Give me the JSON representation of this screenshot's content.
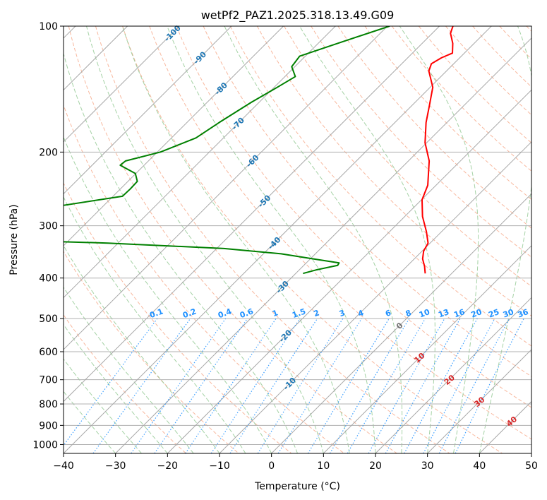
{
  "chart_data": {
    "type": "line",
    "diagram": "skew-t log-p",
    "title": "wetPf2_PAZ1.2025.318.13.49.G09",
    "xlabel": "Temperature (°C)",
    "ylabel": "Pressure (hPa)",
    "xlim": [
      -40,
      50
    ],
    "ylim": [
      1050,
      100
    ],
    "y_scale": "log",
    "x_ticks": [
      -40,
      -30,
      -20,
      -10,
      0,
      10,
      20,
      30,
      40,
      50
    ],
    "y_ticks": [
      100,
      200,
      300,
      400,
      500,
      600,
      700,
      800,
      900,
      1000
    ],
    "grid": true,
    "isotherm_labels": [
      -100,
      -90,
      -80,
      -70,
      -60,
      -50,
      -40,
      -30,
      -20,
      -10,
      0
    ],
    "mixing_ratio_labels": [
      "0.1",
      "0.2",
      "0.4",
      "0.6",
      "1",
      "1.5",
      "2",
      "3",
      "4",
      "6",
      "8",
      "10",
      "13",
      "16",
      "20",
      "25",
      "30",
      "36"
    ],
    "mixing_ratio_values": [
      0.1,
      0.2,
      0.4,
      0.6,
      1,
      1.5,
      2,
      3,
      4,
      6,
      8,
      10,
      13,
      16,
      20,
      25,
      30,
      36
    ],
    "adiabat_labels": [
      "10",
      "20",
      "30",
      "40"
    ],
    "adiabat_values": [
      10,
      20,
      30,
      40
    ],
    "zero_label": "0",
    "series": [
      {
        "color": "#ff0000",
        "points": [
          [
            100,
            -47.4
          ],
          [
            104,
            -46.5
          ],
          [
            110,
            -44.1
          ],
          [
            116,
            -42.3
          ],
          [
            119,
            -43.5
          ],
          [
            123,
            -44.3
          ],
          [
            128,
            -43.4
          ],
          [
            140,
            -39.5
          ],
          [
            155,
            -36.6
          ],
          [
            170,
            -34.0
          ],
          [
            190,
            -30.3
          ],
          [
            210,
            -26.0
          ],
          [
            240,
            -21.6
          ],
          [
            260,
            -19.9
          ],
          [
            285,
            -16.6
          ],
          [
            310,
            -12.9
          ],
          [
            330,
            -10.4
          ],
          [
            345,
            -9.7
          ],
          [
            360,
            -8.4
          ],
          [
            375,
            -6.6
          ],
          [
            390,
            -5.1
          ]
        ]
      },
      {
        "color": "#008000",
        "points": [
          [
            100,
            -59.6
          ],
          [
            110,
            -66.3
          ],
          [
            118,
            -71.1
          ],
          [
            125,
            -70.6
          ],
          [
            132,
            -68.0
          ],
          [
            140,
            -69.4
          ],
          [
            152,
            -71.5
          ],
          [
            170,
            -73.8
          ],
          [
            185,
            -75.3
          ],
          [
            200,
            -79.4
          ],
          [
            210,
            -84.4
          ],
          [
            215,
            -84.6
          ],
          [
            225,
            -80.1
          ],
          [
            235,
            -78.2
          ],
          [
            245,
            -78.1
          ],
          [
            255,
            -78.2
          ],
          [
            270,
            -89.1
          ],
          [
            285,
            -88.3
          ],
          [
            305,
            -88.0
          ],
          [
            316,
            -89.6
          ],
          [
            323,
            -89.0
          ],
          [
            326,
            -86.9
          ],
          [
            330,
            -72.0
          ],
          [
            340,
            -48.6
          ],
          [
            350,
            -36.6
          ],
          [
            360,
            -29.4
          ],
          [
            368,
            -23.7
          ],
          [
            373,
            -23.5
          ],
          [
            382,
            -26.6
          ],
          [
            390,
            -28.6
          ]
        ]
      }
    ]
  }
}
